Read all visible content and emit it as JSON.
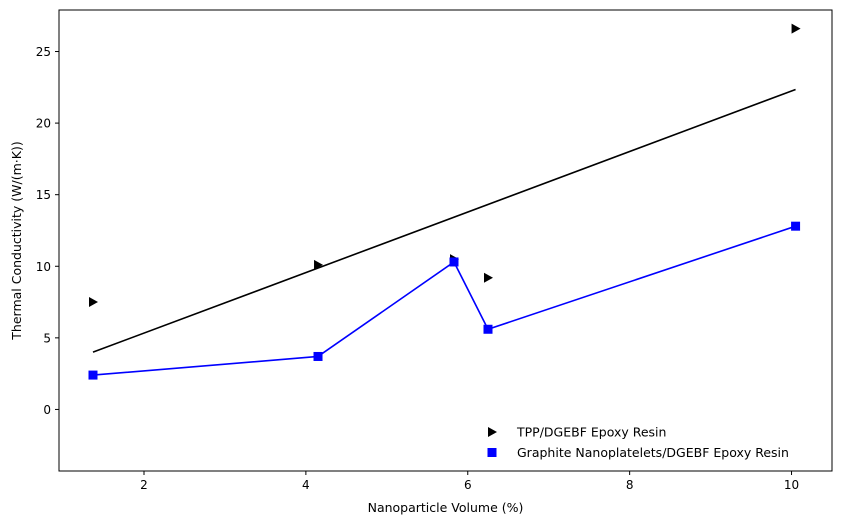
{
  "chart_data": {
    "type": "scatter",
    "xlabel": "Nanoparticle Volume (%)",
    "ylabel": "Thermal Conductivity (W/(m·K))",
    "xlim": [
      0.95,
      10.5
    ],
    "ylim": [
      -4.3,
      27.9
    ],
    "xticks": [
      2,
      4,
      6,
      8,
      10
    ],
    "yticks": [
      0,
      5,
      10,
      15,
      20,
      25
    ],
    "grid": false,
    "legend_position": "lower-right",
    "series": [
      {
        "name": "TPP/DGEBF Epoxy Resin",
        "marker": "triangle-right",
        "color": "#000000",
        "connected": false,
        "x": [
          1.37,
          4.15,
          5.83,
          6.25,
          10.05
        ],
        "y": [
          7.5,
          10.1,
          10.5,
          9.2,
          26.6
        ]
      },
      {
        "name": "Graphite Nanoplatelets/DGEBF Epoxy Resin",
        "marker": "square",
        "color": "#0000ff",
        "connected": true,
        "x": [
          1.37,
          4.15,
          5.83,
          6.25,
          10.05
        ],
        "y": [
          2.4,
          3.7,
          10.3,
          5.6,
          12.8
        ]
      }
    ],
    "trend_line": {
      "color": "#000000",
      "x": [
        1.37,
        10.05
      ],
      "y": [
        4.0,
        22.35
      ]
    }
  }
}
